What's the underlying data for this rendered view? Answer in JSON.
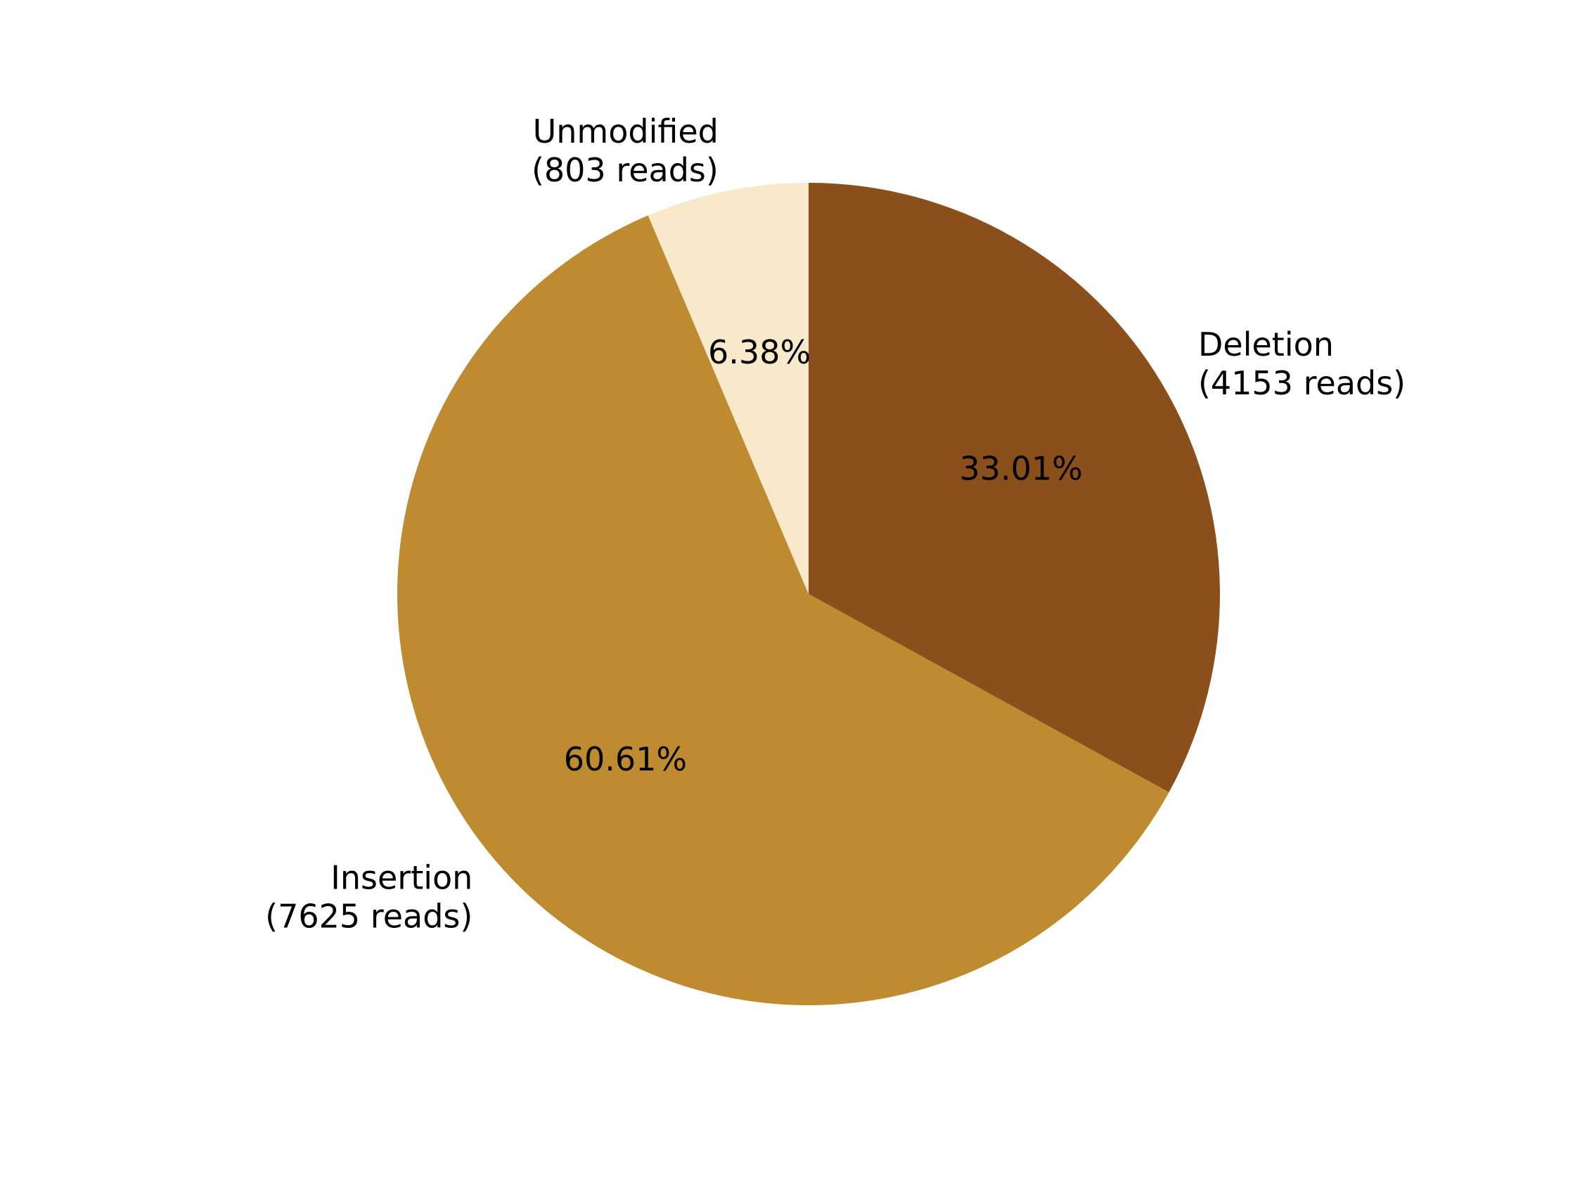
{
  "chart_data": {
    "type": "pie",
    "slices": [
      {
        "name": "Deletion",
        "value": 4153,
        "label": "Deletion",
        "reads_label": "(4153 reads)",
        "pct_label": "33.01%",
        "color": "#8B4F1B"
      },
      {
        "name": "Insertion",
        "value": 7625,
        "label": "Insertion",
        "reads_label": "(7625 reads)",
        "pct_label": "60.61%",
        "color": "#BE8B31"
      },
      {
        "name": "Unmodified",
        "value": 803,
        "label": "Unmodified",
        "reads_label": "(803 reads)",
        "pct_label": "6.38%",
        "color": "#F8E9CA"
      }
    ],
    "start": "top",
    "direction": "clockwise",
    "title": "",
    "legend": "none"
  }
}
